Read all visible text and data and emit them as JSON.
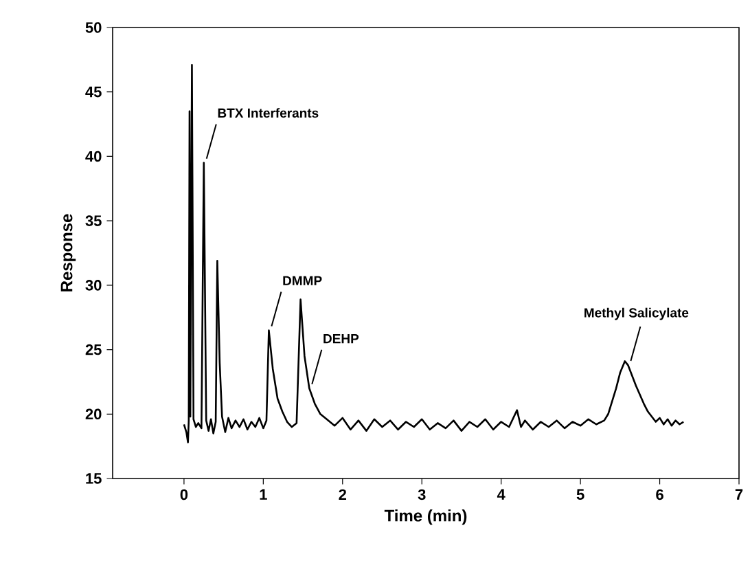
{
  "chart_data": {
    "type": "line",
    "xlabel": "Time (min)",
    "ylabel": "Response",
    "xlim": [
      -0.9,
      7
    ],
    "ylim": [
      15,
      50
    ],
    "xticks": [
      0,
      1,
      2,
      3,
      4,
      5,
      6,
      7
    ],
    "yticks": [
      15,
      20,
      25,
      30,
      35,
      40,
      45,
      50
    ],
    "grid": false,
    "marker": "none",
    "line_style": "solid",
    "series": [
      {
        "color": "#000000",
        "x": [
          0.0,
          0.03,
          0.05,
          0.06,
          0.07,
          0.08,
          0.1,
          0.12,
          0.15,
          0.18,
          0.22,
          0.25,
          0.28,
          0.31,
          0.34,
          0.37,
          0.4,
          0.42,
          0.45,
          0.48,
          0.52,
          0.56,
          0.6,
          0.65,
          0.7,
          0.75,
          0.8,
          0.85,
          0.9,
          0.95,
          1.0,
          1.04,
          1.07,
          1.12,
          1.18,
          1.24,
          1.3,
          1.36,
          1.42,
          1.47,
          1.52,
          1.58,
          1.65,
          1.72,
          1.8,
          1.9,
          2.0,
          2.1,
          2.2,
          2.3,
          2.4,
          2.5,
          2.6,
          2.7,
          2.8,
          2.9,
          3.0,
          3.1,
          3.2,
          3.3,
          3.4,
          3.5,
          3.6,
          3.7,
          3.8,
          3.9,
          4.0,
          4.1,
          4.2,
          4.25,
          4.3,
          4.4,
          4.5,
          4.6,
          4.7,
          4.8,
          4.9,
          5.0,
          5.1,
          5.2,
          5.3,
          5.35,
          5.4,
          5.45,
          5.5,
          5.56,
          5.6,
          5.65,
          5.7,
          5.75,
          5.8,
          5.85,
          5.9,
          5.95,
          6.0,
          6.05,
          6.1,
          6.15,
          6.2,
          6.25,
          6.3
        ],
        "values": [
          19.2,
          18.6,
          17.8,
          19.5,
          43.5,
          19.8,
          47.1,
          19.6,
          19.0,
          19.3,
          18.9,
          39.5,
          19.5,
          18.7,
          19.6,
          18.5,
          19.4,
          31.9,
          24.0,
          19.8,
          18.6,
          19.7,
          18.9,
          19.5,
          19.0,
          19.6,
          18.8,
          19.4,
          19.0,
          19.7,
          18.9,
          19.5,
          26.5,
          23.5,
          21.2,
          20.2,
          19.4,
          19.0,
          19.3,
          28.9,
          24.5,
          22.0,
          20.8,
          20.0,
          19.6,
          19.1,
          19.7,
          18.8,
          19.5,
          18.7,
          19.6,
          19.0,
          19.5,
          18.8,
          19.4,
          19.0,
          19.6,
          18.8,
          19.3,
          18.9,
          19.5,
          18.7,
          19.4,
          19.0,
          19.6,
          18.8,
          19.4,
          19.0,
          20.3,
          19.0,
          19.5,
          18.8,
          19.4,
          19.0,
          19.5,
          18.9,
          19.4,
          19.1,
          19.6,
          19.2,
          19.5,
          20.0,
          21.0,
          22.0,
          23.2,
          24.1,
          23.8,
          23.0,
          22.2,
          21.5,
          20.8,
          20.2,
          19.8,
          19.4,
          19.7,
          19.2,
          19.6,
          19.1,
          19.5,
          19.2,
          19.4
        ]
      }
    ],
    "annotations": [
      {
        "text": "BTX Interferants",
        "x": 0.25,
        "y": 39.5
      },
      {
        "text": "DMMP",
        "x": 1.07,
        "y": 26.5
      },
      {
        "text": "DEHP",
        "x": 1.58,
        "y": 22.0
      },
      {
        "text": "Methyl Salicylate",
        "x": 5.6,
        "y": 23.8
      }
    ]
  }
}
